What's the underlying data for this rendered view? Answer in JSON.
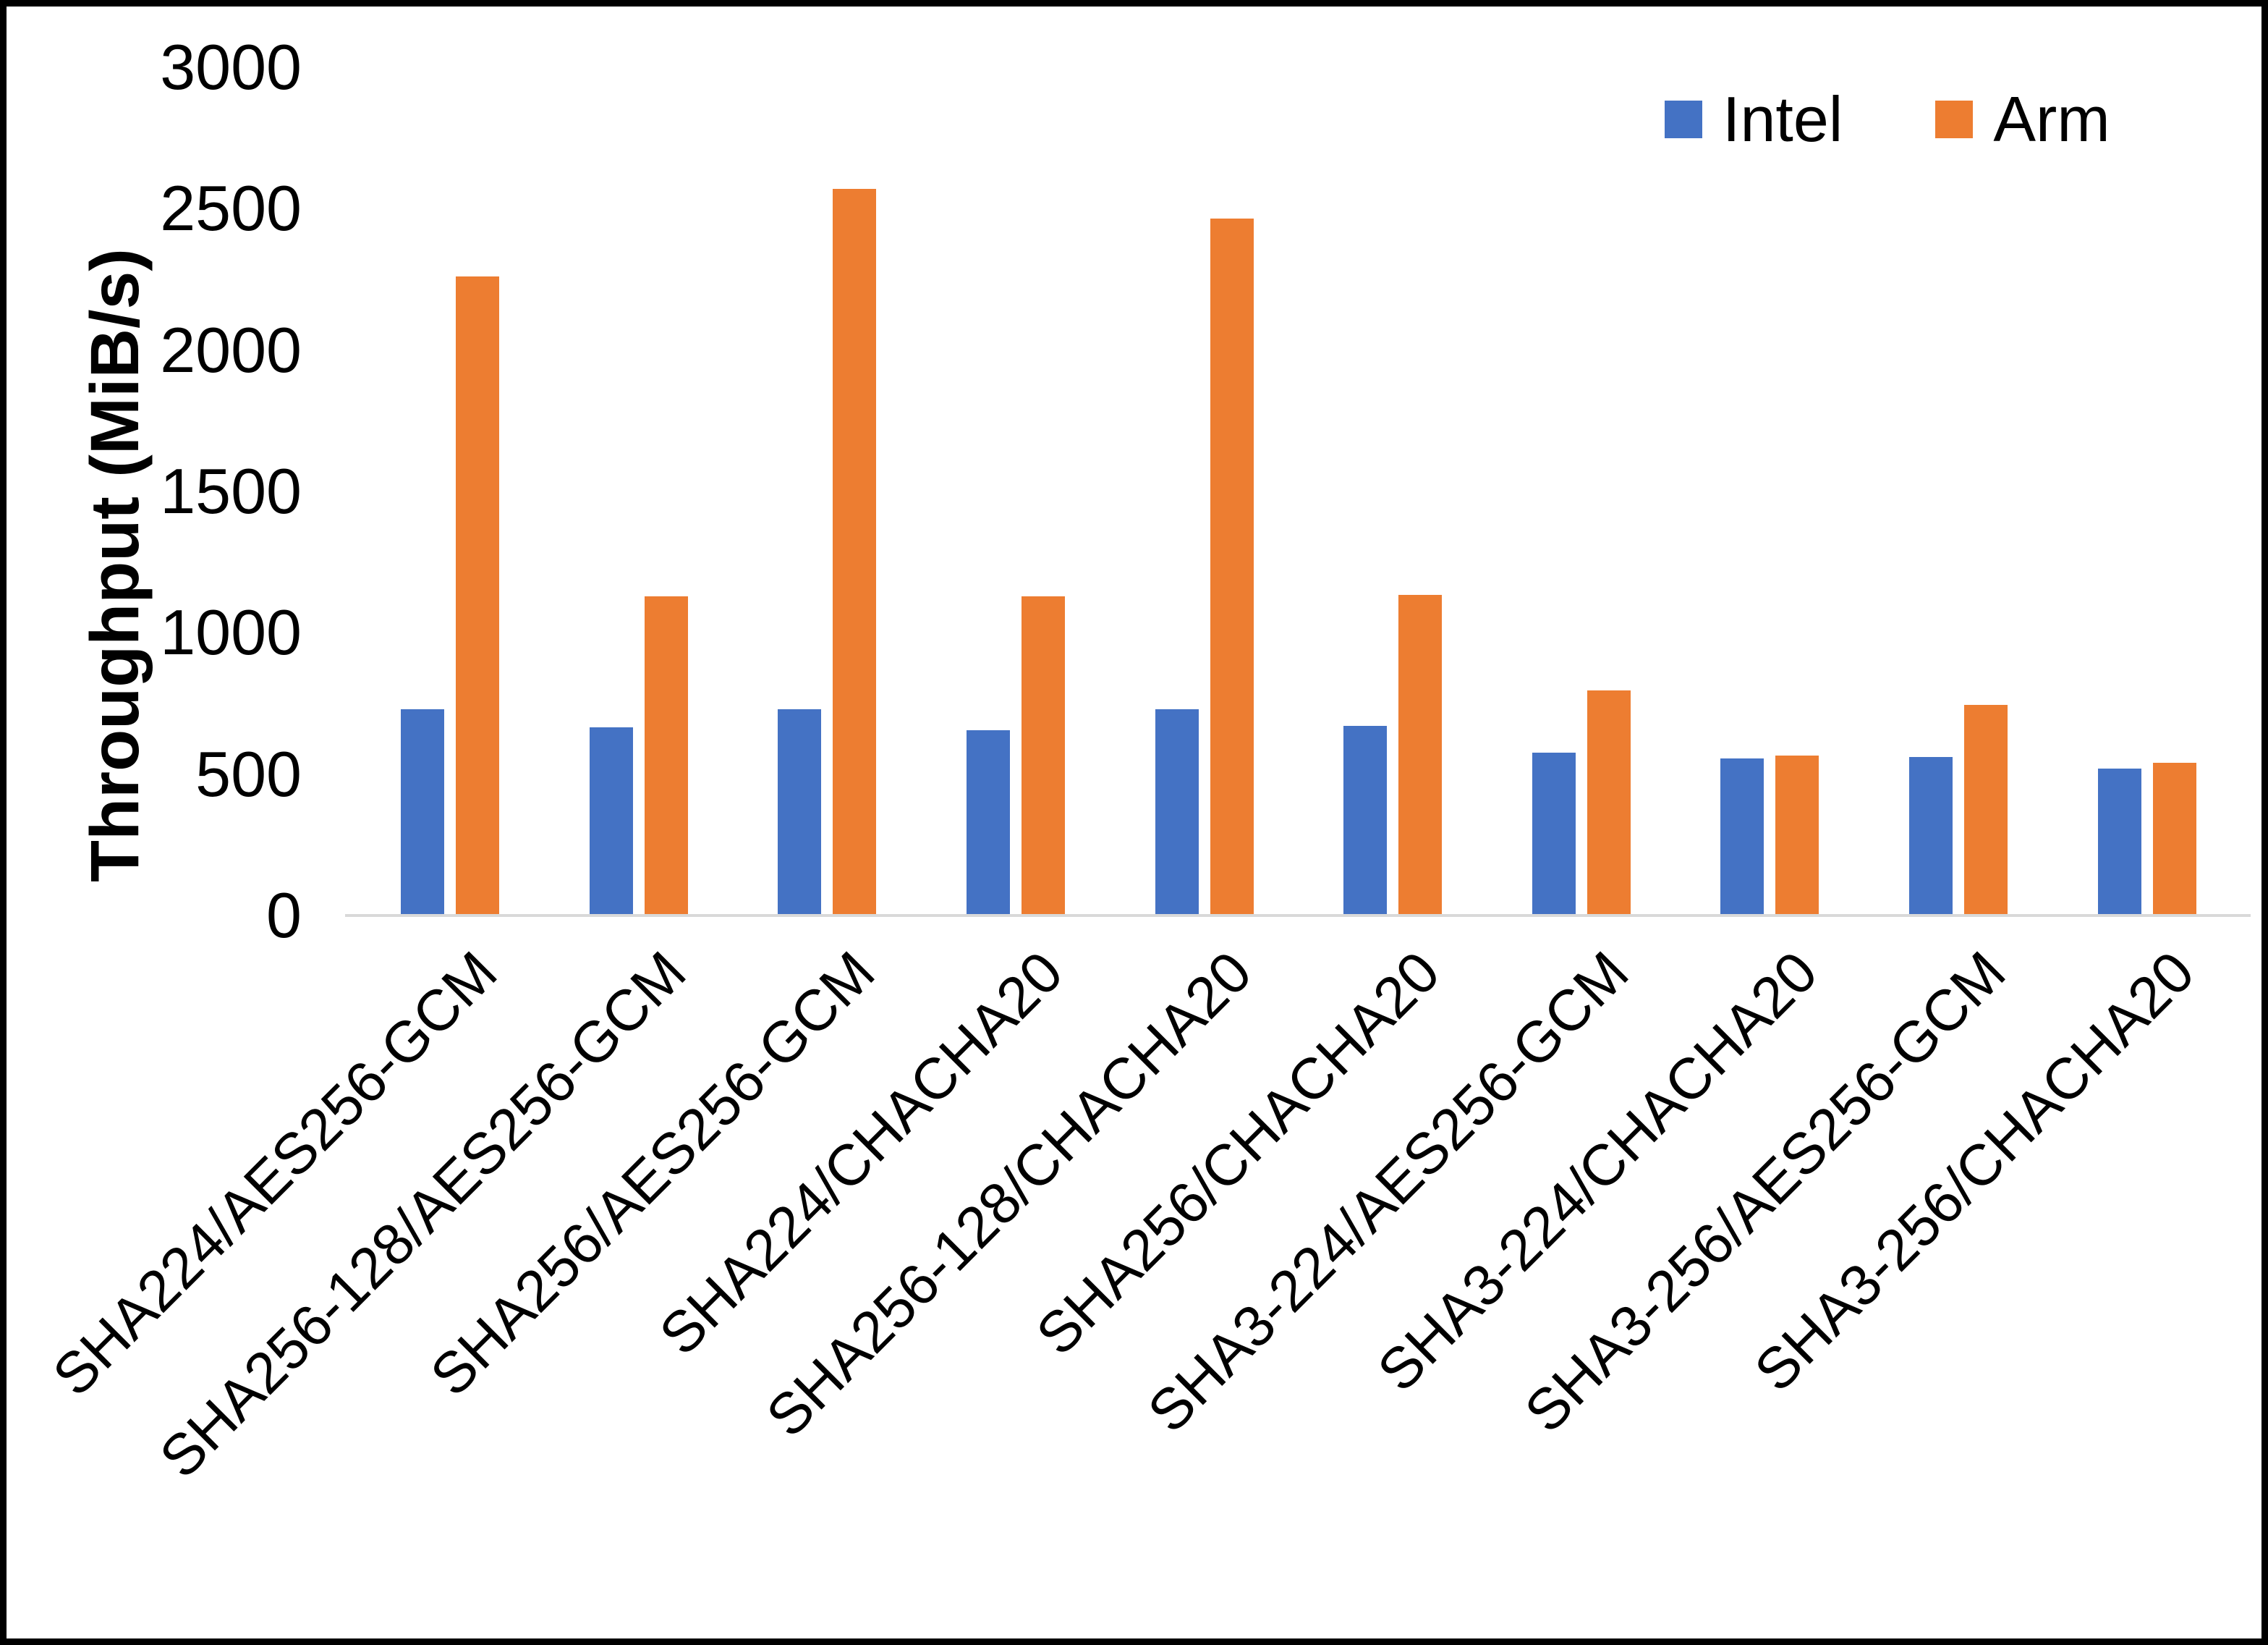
{
  "chart_data": {
    "type": "bar",
    "title": "",
    "xlabel": "",
    "ylabel": "Throughput (MiB/s)",
    "ylim": [
      0,
      3000
    ],
    "ytick_step": 500,
    "grid": false,
    "legend_position": "top-right-inside",
    "axis_line_color": "#D9D9D9",
    "text_color": "#000000",
    "background_color": "#FFFFFF",
    "frame_border_color": "#000000",
    "categories": [
      "SHA224/AES256-GCM",
      "SHA256-128/AES256-GCM",
      "SHA256/AES256-GCM",
      "SHA224/CHACHA20",
      "SHA256-128/CHACHA20",
      "SHA256/CHACHA20",
      "SHA3-224/AES256-GCM",
      "SHA3-224/CHACHA20",
      "SHA3-256/AES256-GCM",
      "SHA3-256/CHACHA20"
    ],
    "series": [
      {
        "name": "Intel",
        "color": "#4472C4",
        "values": [
          730,
          665,
          730,
          655,
          730,
          670,
          575,
          555,
          560,
          520
        ]
      },
      {
        "name": "Arm",
        "color": "#ED7D31",
        "values": [
          2260,
          1130,
          2570,
          1130,
          2465,
          1135,
          795,
          565,
          745,
          540
        ]
      }
    ]
  }
}
